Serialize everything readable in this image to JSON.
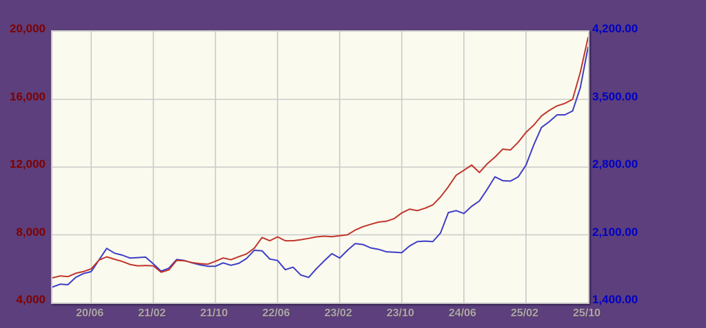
{
  "colors": {
    "background": "#5C3F7C",
    "plot_background": "#FBFAEE",
    "gridline": "#C9C9C9",
    "left_axis_label": "#7F0000",
    "right_axis_label": "#0000C4",
    "x_axis_label": "#A8A8A8",
    "red_series": "#C1352C",
    "blue_series": "#3C3CC8"
  },
  "chart_data": {
    "type": "line",
    "title": "",
    "grid": true,
    "legend": "none",
    "x": [
      "20/01",
      "20/02",
      "20/03",
      "20/04",
      "20/05",
      "20/06",
      "20/07",
      "20/08",
      "20/09",
      "20/10",
      "20/11",
      "20/12",
      "21/01",
      "21/02",
      "21/03",
      "21/04",
      "21/05",
      "21/06",
      "21/07",
      "21/08",
      "21/09",
      "21/10",
      "21/11",
      "21/12",
      "22/01",
      "22/02",
      "22/03",
      "22/04",
      "22/05",
      "22/06",
      "22/07",
      "22/08",
      "22/09",
      "22/10",
      "22/11",
      "22/12",
      "23/01",
      "23/02",
      "23/03",
      "23/04",
      "23/05",
      "23/06",
      "23/07",
      "23/08",
      "23/09",
      "23/10",
      "23/11",
      "23/12",
      "24/01",
      "24/02",
      "24/03",
      "24/04",
      "24/05",
      "24/06",
      "24/07",
      "24/08",
      "24/09",
      "24/10",
      "24/11",
      "24/12",
      "25/01",
      "25/02",
      "25/03",
      "25/04",
      "25/05",
      "25/06",
      "25/07",
      "25/08",
      "25/09",
      "25/10"
    ],
    "x_tick_labels": [
      "20/06",
      "21/02",
      "21/10",
      "22/06",
      "23/02",
      "23/10",
      "24/06",
      "25/02",
      "25/10"
    ],
    "x_tick_indices": [
      5,
      13,
      21,
      29,
      37,
      45,
      53,
      61,
      69
    ],
    "left_axis": {
      "min": 4000,
      "max": 20000,
      "tick_values": [
        20000,
        16000,
        12000,
        8000,
        4000
      ],
      "tick_labels": [
        "20,000",
        "16,000",
        "12,000",
        "8,000",
        "4,000"
      ]
    },
    "right_axis": {
      "min": 1400,
      "max": 4200,
      "tick_values": [
        4200,
        3500,
        2800,
        2100,
        1400
      ],
      "tick_labels": [
        "4,200.00",
        "3,500.00",
        "2,800.00",
        "2,100.00",
        "1,400.00"
      ]
    },
    "series": [
      {
        "name": "blue-series-right-scale",
        "axis": "right",
        "color": "#3C3CC8",
        "values": [
          1560,
          1590,
          1585,
          1660,
          1700,
          1720,
          1840,
          1960,
          1910,
          1890,
          1860,
          1865,
          1870,
          1800,
          1725,
          1755,
          1845,
          1835,
          1810,
          1790,
          1775,
          1775,
          1810,
          1785,
          1805,
          1855,
          1940,
          1935,
          1850,
          1835,
          1740,
          1765,
          1685,
          1660,
          1750,
          1830,
          1905,
          1860,
          1940,
          2010,
          2000,
          1965,
          1950,
          1925,
          1920,
          1915,
          1985,
          2030,
          2035,
          2030,
          2120,
          2330,
          2350,
          2320,
          2395,
          2450,
          2570,
          2700,
          2660,
          2655,
          2700,
          2820,
          3030,
          3210,
          3270,
          3340,
          3340,
          3380,
          3620,
          4040
        ]
      },
      {
        "name": "red-series-left-scale",
        "axis": "left",
        "color": "#C1352C",
        "values": [
          5460,
          5570,
          5530,
          5730,
          5830,
          5990,
          6510,
          6700,
          6560,
          6430,
          6250,
          6170,
          6190,
          6170,
          5790,
          5930,
          6490,
          6465,
          6360,
          6300,
          6260,
          6440,
          6630,
          6530,
          6710,
          6870,
          7210,
          7840,
          7650,
          7880,
          7650,
          7650,
          7710,
          7790,
          7880,
          7920,
          7890,
          7950,
          8000,
          8280,
          8480,
          8620,
          8750,
          8800,
          8950,
          9290,
          9520,
          9430,
          9570,
          9770,
          10240,
          10840,
          11520,
          11810,
          12120,
          11680,
          12190,
          12590,
          13060,
          13010,
          13470,
          14050,
          14480,
          15020,
          15350,
          15620,
          15760,
          16000,
          17600,
          19660
        ]
      }
    ]
  }
}
